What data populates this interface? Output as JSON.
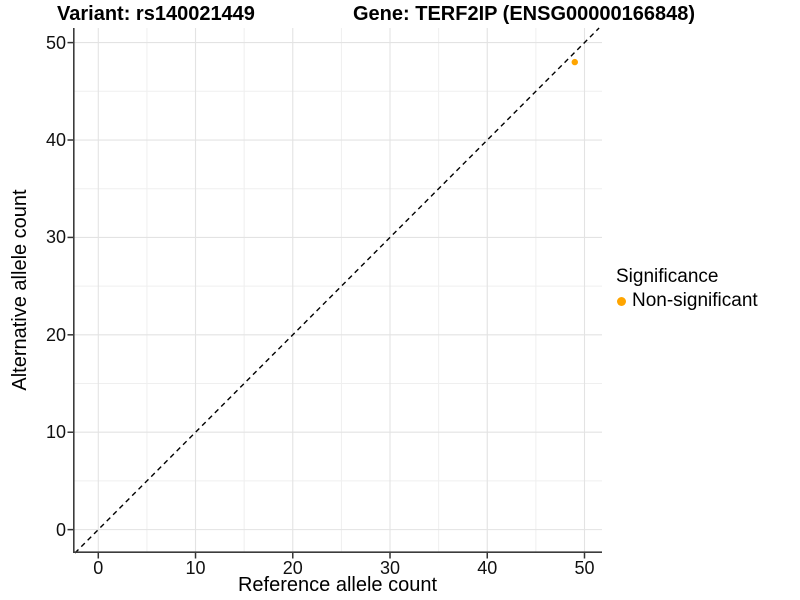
{
  "header": {
    "variant_title": "Variant: rs140021449",
    "gene_title": "Gene: TERF2IP (ENSG00000166848)"
  },
  "legend": {
    "title": "Significance",
    "items": [
      {
        "label": "Non-significant",
        "color": "#FFA500"
      }
    ]
  },
  "chart_data": {
    "type": "scatter",
    "title": "Variant: rs140021449   Gene: TERF2IP (ENSG00000166848)",
    "xlabel": "Reference allele count",
    "ylabel": "Alternative allele count",
    "xlim": [
      -2.6,
      51.8
    ],
    "ylim": [
      -2.4,
      51.5
    ],
    "x_ticks": [
      0,
      10,
      20,
      30,
      40,
      50
    ],
    "y_ticks": [
      0,
      10,
      20,
      30,
      40,
      50
    ],
    "x_minor_ticks": [
      5,
      15,
      25,
      35,
      45
    ],
    "y_minor_ticks": [
      5,
      15,
      25,
      35,
      45
    ],
    "grid": "major+minor",
    "legend_position": "right",
    "series": [
      {
        "name": "Non-significant",
        "color": "#FFA500",
        "points": [
          {
            "x": 49,
            "y": 48
          }
        ]
      }
    ],
    "reference_line": {
      "type": "identity",
      "slope": 1,
      "intercept": 0,
      "style": "dashed",
      "color": "#000000"
    },
    "theme": {
      "panel_background": "#ffffff",
      "grid_major_color": "#e3e3e3",
      "grid_minor_color": "#efefef",
      "axis_line_color": "#3c3c3c",
      "tick_mark_color": "#333333",
      "text_color": "#000000"
    }
  }
}
